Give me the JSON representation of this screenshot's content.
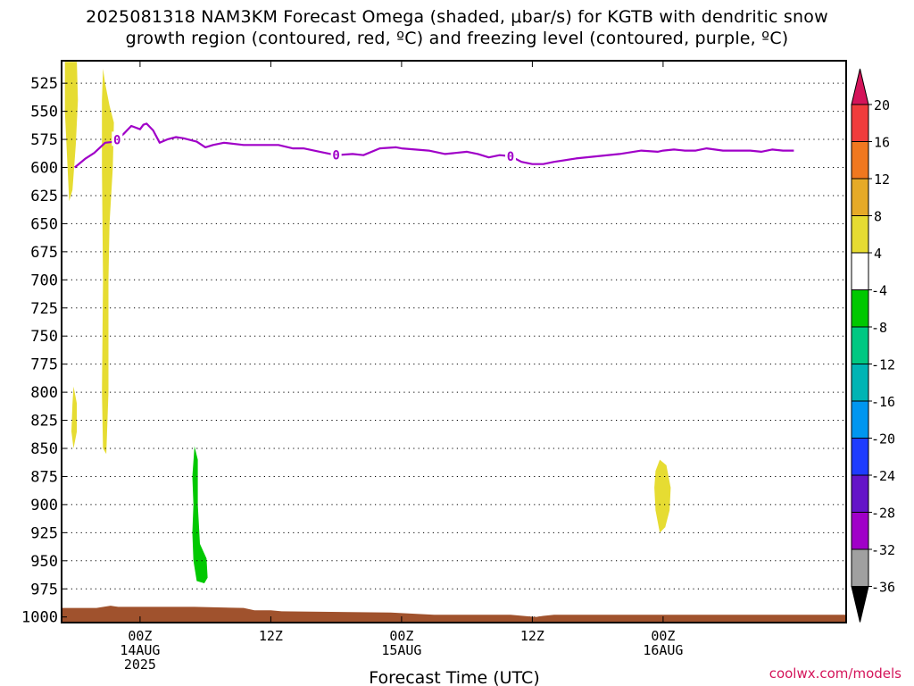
{
  "title_line1": "2025081318 NAM3KM Forecast Omega (shaded, μbar/s) for KGTB with dendritic snow",
  "title_line2": "growth region (contoured, red, ºC) and freezing level (contoured, purple, ºC)",
  "credit": "coolwx.com/models",
  "chart_data": {
    "type": "contour",
    "xlabel": "Forecast Time (UTC)",
    "ylabel": "",
    "y_reversed": true,
    "xlim_hours": [
      -7.2,
      64.8
    ],
    "ylim": [
      505,
      1005
    ],
    "grid": "dotted horizontal at each pressure tick",
    "y_ticks": [
      525,
      550,
      575,
      600,
      625,
      650,
      675,
      700,
      725,
      750,
      775,
      800,
      825,
      850,
      875,
      900,
      925,
      950,
      975,
      1000
    ],
    "x_ticks": [
      {
        "hour": 0,
        "lines": [
          "00Z",
          "14AUG",
          "2025"
        ]
      },
      {
        "hour": 12,
        "lines": [
          "12Z"
        ]
      },
      {
        "hour": 24,
        "lines": [
          "00Z",
          "15AUG"
        ]
      },
      {
        "hour": 36,
        "lines": [
          "12Z"
        ]
      },
      {
        "hour": 48,
        "lines": [
          "00Z",
          "16AUG"
        ]
      }
    ],
    "colorbar": {
      "labels": [
        "20",
        "16",
        "12",
        "8",
        "4",
        "-4",
        "-8",
        "-12",
        "-16",
        "-20",
        "-24",
        "-28",
        "-32",
        "-36"
      ],
      "colors": [
        "#d4145a",
        "#f03c3c",
        "#f07820",
        "#e6aa28",
        "#e6dc32",
        "#ffffff",
        "#00c800",
        "#00c882",
        "#00b4b4",
        "#0096f0",
        "#1e3cff",
        "#6414c8",
        "#a000c8",
        "#a0a0a0",
        "#000000"
      ]
    },
    "freezing_level": {
      "color": "#a000c8",
      "label": "0",
      "label_hours": [
        -2.1,
        18,
        34
      ],
      "points": [
        [
          -6.0,
          600
        ],
        [
          -5.0,
          592
        ],
        [
          -4.2,
          587
        ],
        [
          -3.2,
          578
        ],
        [
          -2.3,
          577
        ],
        [
          -1.5,
          570
        ],
        [
          -0.8,
          563
        ],
        [
          0.0,
          566
        ],
        [
          0.3,
          562
        ],
        [
          0.6,
          561
        ],
        [
          1.2,
          567
        ],
        [
          1.8,
          578
        ],
        [
          2.5,
          575
        ],
        [
          3.3,
          573
        ],
        [
          4.0,
          574
        ],
        [
          5.2,
          577
        ],
        [
          6.0,
          582
        ],
        [
          6.7,
          580
        ],
        [
          7.7,
          578
        ],
        [
          9.5,
          580
        ],
        [
          11.0,
          580
        ],
        [
          12.7,
          580
        ],
        [
          14.0,
          583
        ],
        [
          15.0,
          583
        ],
        [
          16.5,
          586
        ],
        [
          18.0,
          589
        ],
        [
          19.5,
          588
        ],
        [
          20.5,
          589
        ],
        [
          22.0,
          583
        ],
        [
          23.5,
          582
        ],
        [
          24.0,
          583
        ],
        [
          26.5,
          585
        ],
        [
          28.0,
          588
        ],
        [
          30.0,
          586
        ],
        [
          31.0,
          588
        ],
        [
          32.0,
          591
        ],
        [
          33.0,
          589
        ],
        [
          34.0,
          590
        ],
        [
          35.0,
          595
        ],
        [
          36.0,
          597
        ],
        [
          37.0,
          597
        ],
        [
          38.0,
          595
        ],
        [
          40.0,
          592
        ],
        [
          42.0,
          590
        ],
        [
          44.0,
          588
        ],
        [
          46.0,
          585
        ],
        [
          47.5,
          586
        ],
        [
          48.0,
          585
        ],
        [
          49.0,
          584
        ],
        [
          50.0,
          585
        ],
        [
          51.0,
          585
        ],
        [
          52.0,
          583
        ],
        [
          53.5,
          585
        ],
        [
          55.0,
          585
        ],
        [
          56.0,
          585
        ],
        [
          57.0,
          586
        ],
        [
          58.0,
          584
        ],
        [
          59.0,
          585
        ],
        [
          60.0,
          585
        ]
      ]
    },
    "omega_regions": [
      {
        "color": "#e6dc32",
        "points": [
          [
            -6.9,
            506
          ],
          [
            -5.8,
            506
          ],
          [
            -5.7,
            540
          ],
          [
            -5.9,
            580
          ],
          [
            -6.2,
            620
          ],
          [
            -6.5,
            630
          ],
          [
            -6.7,
            590
          ],
          [
            -6.9,
            550
          ]
        ]
      },
      {
        "color": "#e6dc32",
        "points": [
          [
            -3.2,
            525
          ],
          [
            -2.8,
            545
          ],
          [
            -2.4,
            560
          ],
          [
            -2.5,
            600
          ],
          [
            -2.8,
            650
          ],
          [
            -2.9,
            700
          ],
          [
            -2.9,
            800
          ],
          [
            -3.1,
            855
          ],
          [
            -3.4,
            850
          ],
          [
            -3.5,
            800
          ],
          [
            -3.4,
            700
          ],
          [
            -3.5,
            600
          ],
          [
            -3.5,
            560
          ],
          [
            -3.5,
            540
          ],
          [
            -3.4,
            512
          ]
        ]
      },
      {
        "color": "#e6dc32",
        "points": [
          [
            -6.1,
            795
          ],
          [
            -5.8,
            810
          ],
          [
            -5.8,
            835
          ],
          [
            -6.1,
            850
          ],
          [
            -6.3,
            835
          ],
          [
            -6.2,
            810
          ]
        ]
      },
      {
        "color": "#00c800",
        "points": [
          [
            5.0,
            848
          ],
          [
            5.3,
            860
          ],
          [
            5.3,
            900
          ],
          [
            5.5,
            935
          ],
          [
            6.1,
            948
          ],
          [
            6.2,
            965
          ],
          [
            5.9,
            970
          ],
          [
            5.2,
            968
          ],
          [
            4.9,
            950
          ],
          [
            4.8,
            925
          ],
          [
            4.9,
            900
          ],
          [
            4.8,
            875
          ]
        ]
      },
      {
        "color": "#e6dc32",
        "points": [
          [
            47.7,
            860
          ],
          [
            48.3,
            865
          ],
          [
            48.7,
            885
          ],
          [
            48.6,
            905
          ],
          [
            48.2,
            920
          ],
          [
            47.7,
            925
          ],
          [
            47.3,
            905
          ],
          [
            47.2,
            885
          ],
          [
            47.3,
            870
          ]
        ]
      }
    ],
    "terrain": {
      "color": "#a0522d",
      "surface": [
        [
          -7.2,
          992
        ],
        [
          -4.0,
          992
        ],
        [
          -2.7,
          990
        ],
        [
          -2.0,
          991
        ],
        [
          0.0,
          991
        ],
        [
          5.0,
          991
        ],
        [
          9.5,
          992
        ],
        [
          10.5,
          994
        ],
        [
          12.0,
          994
        ],
        [
          13.0,
          995
        ],
        [
          23.0,
          996
        ],
        [
          27.0,
          998
        ],
        [
          34.0,
          998
        ],
        [
          36.3,
          1000
        ],
        [
          37.0,
          999
        ],
        [
          38.0,
          998
        ],
        [
          64.8,
          998
        ]
      ]
    }
  }
}
